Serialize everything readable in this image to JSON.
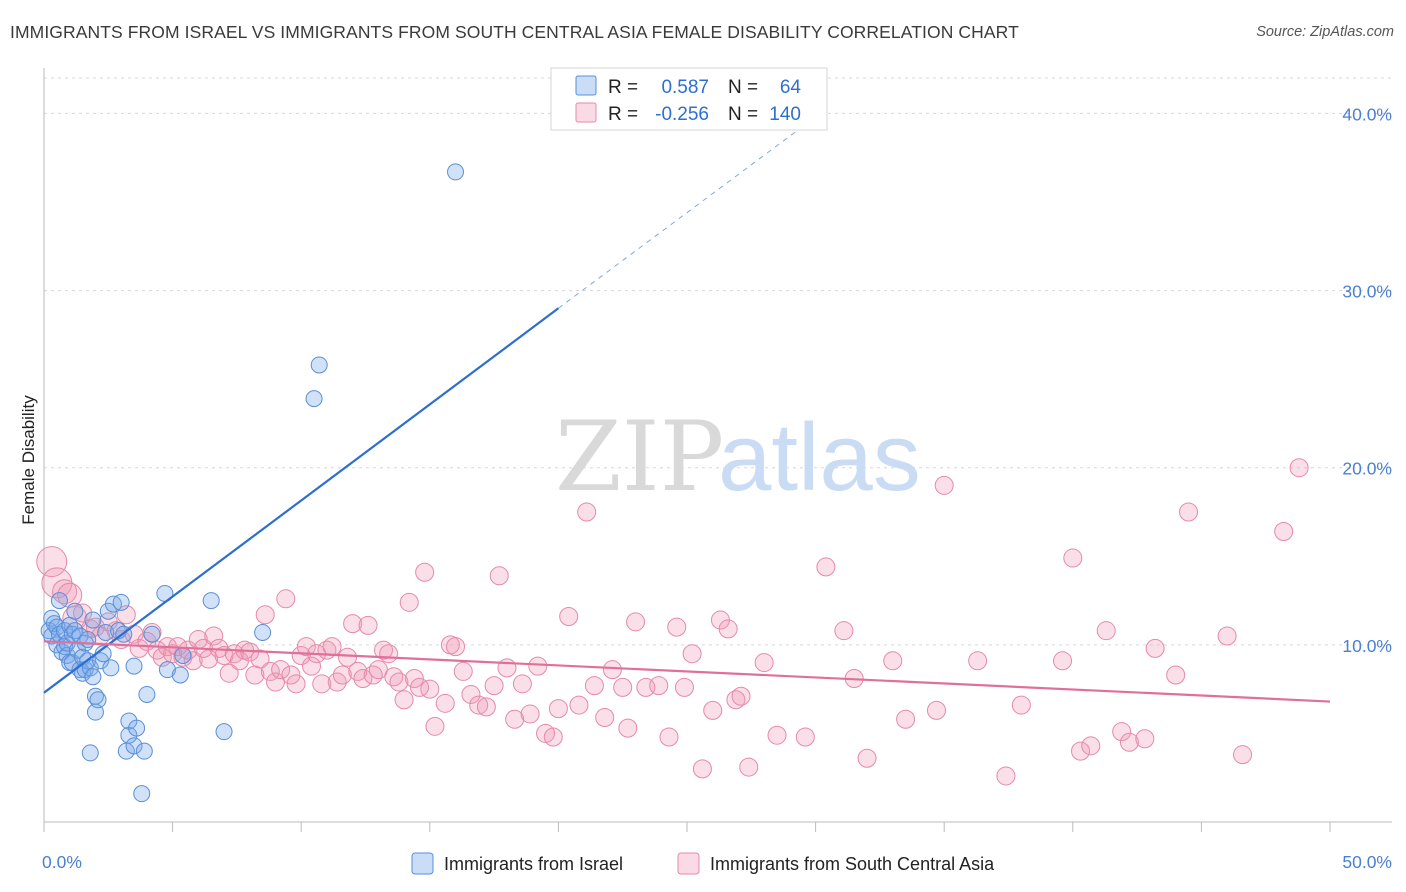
{
  "title": "IMMIGRANTS FROM ISRAEL VS IMMIGRANTS FROM SOUTH CENTRAL ASIA FEMALE DISABILITY CORRELATION CHART",
  "source": "Source: ZipAtlas.com",
  "watermark": {
    "zip": "ZIP",
    "atlas": "atlas"
  },
  "colors": {
    "israel_fill": "rgba(120,170,235,0.35)",
    "israel_stroke": "#5a8fd8",
    "israel_line": "#2c6fd1",
    "sca_fill": "rgba(240,150,180,0.30)",
    "sca_stroke": "#e58aa8",
    "sca_line": "#e0709a",
    "tick_text": "#4a7fd4",
    "grid": "#d8d8d8"
  },
  "stats_box": {
    "rows": [
      {
        "r_label": "R =",
        "r_value": "0.587",
        "n_label": "N =",
        "n_value": "64"
      },
      {
        "r_label": "R =",
        "r_value": "-0.256",
        "n_label": "N =",
        "n_value": "140"
      }
    ]
  },
  "chart_data": {
    "type": "scatter",
    "title": "IMMIGRANTS FROM ISRAEL VS IMMIGRANTS FROM SOUTH CENTRAL ASIA FEMALE DISABILITY CORRELATION CHART",
    "xlabel": "",
    "ylabel": "Female Disability",
    "xlim": [
      0,
      50
    ],
    "ylim": [
      0,
      42
    ],
    "x_tick_labels": [
      "0.0%",
      "50.0%"
    ],
    "y_ticks": [
      10,
      20,
      30,
      40
    ],
    "y_tick_labels": [
      "10.0%",
      "20.0%",
      "30.0%",
      "40.0%"
    ],
    "grid": "horizontal dashed",
    "legend_position": "bottom-center",
    "series": [
      {
        "name": "Immigrants from Israel",
        "r": 0.587,
        "n": 64,
        "trend": {
          "x0": 0,
          "y0": 7.3,
          "x1": 20,
          "y1": 29,
          "dash_to_x": 30,
          "dash_to_y": 39.8
        },
        "points": [
          [
            0.2,
            10.8
          ],
          [
            0.3,
            11.5
          ],
          [
            0.3,
            10.5
          ],
          [
            0.4,
            11.2
          ],
          [
            0.5,
            10.0
          ],
          [
            0.5,
            11.0
          ],
          [
            0.6,
            10.6
          ],
          [
            0.6,
            12.5
          ],
          [
            0.7,
            9.6
          ],
          [
            0.8,
            10.8
          ],
          [
            0.8,
            9.9
          ],
          [
            0.9,
            9.4
          ],
          [
            0.9,
            10.1
          ],
          [
            1.0,
            9.0
          ],
          [
            1.0,
            11.1
          ],
          [
            1.1,
            10.6
          ],
          [
            1.1,
            9.0
          ],
          [
            1.2,
            11.9
          ],
          [
            1.2,
            10.8
          ],
          [
            1.3,
            9.7
          ],
          [
            1.4,
            8.6
          ],
          [
            1.4,
            10.5
          ],
          [
            1.5,
            9.3
          ],
          [
            1.5,
            8.4
          ],
          [
            1.6,
            10.1
          ],
          [
            1.6,
            8.6
          ],
          [
            1.7,
            9.1
          ],
          [
            1.7,
            10.3
          ],
          [
            1.8,
            8.7
          ],
          [
            1.9,
            8.2
          ],
          [
            1.9,
            11.4
          ],
          [
            2.0,
            7.1
          ],
          [
            2.0,
            6.2
          ],
          [
            2.1,
            6.9
          ],
          [
            2.2,
            9.1
          ],
          [
            2.3,
            9.5
          ],
          [
            2.4,
            10.7
          ],
          [
            2.5,
            11.9
          ],
          [
            2.6,
            8.7
          ],
          [
            2.7,
            12.3
          ],
          [
            2.9,
            10.8
          ],
          [
            3.0,
            12.4
          ],
          [
            3.1,
            10.6
          ],
          [
            3.2,
            4.0
          ],
          [
            3.3,
            4.9
          ],
          [
            3.3,
            5.7
          ],
          [
            3.5,
            8.8
          ],
          [
            3.5,
            4.3
          ],
          [
            3.6,
            5.3
          ],
          [
            3.8,
            1.6
          ],
          [
            3.9,
            4.0
          ],
          [
            4.0,
            7.2
          ],
          [
            4.2,
            10.6
          ],
          [
            4.7,
            12.9
          ],
          [
            4.8,
            8.6
          ],
          [
            5.3,
            8.3
          ],
          [
            5.4,
            9.4
          ],
          [
            6.5,
            12.5
          ],
          [
            7.0,
            5.1
          ],
          [
            8.5,
            10.7
          ],
          [
            10.5,
            23.9
          ],
          [
            10.7,
            25.8
          ],
          [
            16.0,
            36.7
          ],
          [
            1.8,
            3.9
          ]
        ]
      },
      {
        "name": "Immigrants from South Central Asia",
        "r": -0.256,
        "n": 140,
        "trend": {
          "x0": 0,
          "y0": 10.2,
          "x1": 50,
          "y1": 6.8
        },
        "points": [
          [
            0.3,
            14.7
          ],
          [
            0.5,
            13.5
          ],
          [
            0.8,
            13.0
          ],
          [
            1.0,
            12.8
          ],
          [
            1.2,
            11.5
          ],
          [
            1.5,
            11.8
          ],
          [
            1.8,
            10.9
          ],
          [
            2.0,
            11.0
          ],
          [
            2.2,
            10.5
          ],
          [
            2.5,
            11.3
          ],
          [
            2.8,
            10.8
          ],
          [
            3.0,
            10.3
          ],
          [
            3.2,
            11.7
          ],
          [
            3.5,
            10.6
          ],
          [
            3.7,
            9.8
          ],
          [
            4.0,
            10.2
          ],
          [
            4.2,
            10.7
          ],
          [
            4.4,
            9.7
          ],
          [
            4.6,
            9.3
          ],
          [
            4.8,
            9.9
          ],
          [
            5.0,
            9.5
          ],
          [
            5.2,
            9.9
          ],
          [
            5.4,
            9.3
          ],
          [
            5.6,
            9.7
          ],
          [
            5.8,
            9.1
          ],
          [
            6.0,
            10.3
          ],
          [
            6.2,
            9.8
          ],
          [
            6.4,
            9.2
          ],
          [
            6.6,
            10.5
          ],
          [
            6.8,
            9.8
          ],
          [
            7.0,
            9.4
          ],
          [
            7.2,
            8.4
          ],
          [
            7.4,
            9.5
          ],
          [
            7.6,
            9.1
          ],
          [
            7.8,
            9.7
          ],
          [
            8.0,
            9.6
          ],
          [
            8.2,
            8.3
          ],
          [
            8.4,
            9.2
          ],
          [
            8.6,
            11.7
          ],
          [
            8.8,
            8.5
          ],
          [
            9.0,
            7.9
          ],
          [
            9.2,
            8.6
          ],
          [
            9.4,
            12.6
          ],
          [
            9.6,
            8.3
          ],
          [
            9.8,
            7.8
          ],
          [
            10.0,
            9.4
          ],
          [
            10.2,
            9.9
          ],
          [
            10.4,
            8.8
          ],
          [
            10.6,
            9.5
          ],
          [
            10.8,
            7.8
          ],
          [
            11.0,
            9.7
          ],
          [
            11.2,
            9.9
          ],
          [
            11.4,
            7.9
          ],
          [
            11.6,
            8.3
          ],
          [
            11.8,
            9.3
          ],
          [
            12.0,
            11.2
          ],
          [
            12.2,
            8.5
          ],
          [
            12.4,
            8.1
          ],
          [
            12.6,
            11.1
          ],
          [
            12.8,
            8.3
          ],
          [
            13.0,
            8.6
          ],
          [
            13.2,
            9.7
          ],
          [
            13.4,
            9.5
          ],
          [
            13.6,
            8.2
          ],
          [
            13.8,
            7.9
          ],
          [
            14.0,
            6.9
          ],
          [
            14.2,
            12.4
          ],
          [
            14.4,
            8.1
          ],
          [
            14.6,
            7.6
          ],
          [
            14.8,
            14.1
          ],
          [
            15.0,
            7.5
          ],
          [
            15.2,
            5.4
          ],
          [
            15.6,
            6.7
          ],
          [
            15.8,
            10.0
          ],
          [
            16.0,
            9.9
          ],
          [
            16.3,
            8.5
          ],
          [
            16.6,
            7.2
          ],
          [
            16.9,
            6.6
          ],
          [
            17.2,
            6.5
          ],
          [
            17.5,
            7.7
          ],
          [
            17.7,
            13.9
          ],
          [
            18.0,
            8.7
          ],
          [
            18.3,
            5.8
          ],
          [
            18.6,
            7.8
          ],
          [
            18.9,
            6.1
          ],
          [
            19.2,
            8.8
          ],
          [
            19.5,
            5.0
          ],
          [
            19.8,
            4.8
          ],
          [
            20.0,
            6.4
          ],
          [
            20.4,
            11.6
          ],
          [
            20.8,
            6.6
          ],
          [
            21.1,
            17.5
          ],
          [
            21.4,
            7.7
          ],
          [
            21.8,
            5.9
          ],
          [
            22.1,
            8.6
          ],
          [
            22.5,
            7.6
          ],
          [
            22.7,
            5.3
          ],
          [
            23.0,
            11.3
          ],
          [
            23.4,
            7.6
          ],
          [
            23.9,
            7.7
          ],
          [
            24.3,
            4.8
          ],
          [
            24.6,
            11.0
          ],
          [
            24.9,
            7.6
          ],
          [
            25.2,
            9.5
          ],
          [
            25.6,
            3.0
          ],
          [
            26.0,
            6.3
          ],
          [
            26.3,
            11.4
          ],
          [
            26.6,
            10.9
          ],
          [
            26.9,
            6.9
          ],
          [
            27.1,
            7.1
          ],
          [
            27.4,
            3.1
          ],
          [
            28.0,
            9.0
          ],
          [
            28.5,
            4.9
          ],
          [
            29.6,
            4.8
          ],
          [
            30.4,
            14.4
          ],
          [
            31.1,
            10.8
          ],
          [
            31.5,
            8.1
          ],
          [
            32.0,
            3.6
          ],
          [
            33.0,
            9.1
          ],
          [
            33.5,
            5.8
          ],
          [
            35.0,
            19.0
          ],
          [
            34.7,
            6.3
          ],
          [
            36.3,
            9.1
          ],
          [
            37.4,
            2.6
          ],
          [
            38.0,
            6.6
          ],
          [
            39.6,
            9.1
          ],
          [
            40.0,
            14.9
          ],
          [
            40.3,
            4.0
          ],
          [
            40.7,
            4.3
          ],
          [
            41.3,
            10.8
          ],
          [
            41.9,
            5.1
          ],
          [
            42.2,
            4.5
          ],
          [
            42.8,
            4.7
          ],
          [
            43.2,
            9.8
          ],
          [
            44.0,
            8.3
          ],
          [
            46.0,
            10.5
          ],
          [
            46.6,
            3.8
          ],
          [
            48.2,
            16.4
          ],
          [
            48.8,
            20.0
          ],
          [
            44.5,
            17.5
          ]
        ]
      }
    ]
  },
  "legend": {
    "items": [
      {
        "label": "Immigrants from Israel"
      },
      {
        "label": "Immigrants from South Central Asia"
      }
    ]
  }
}
